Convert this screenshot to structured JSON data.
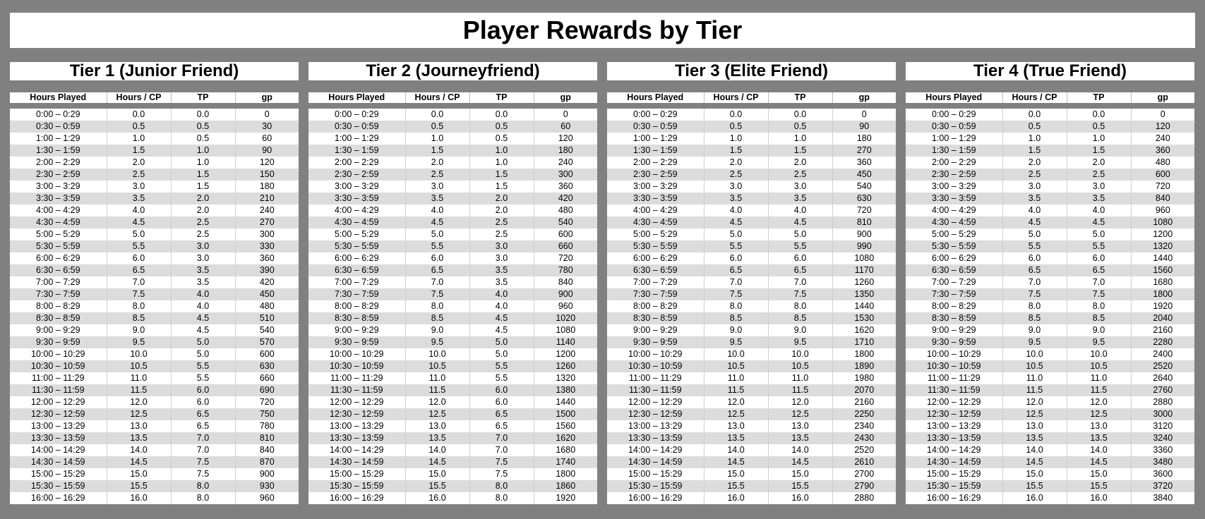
{
  "page_title": "Player Rewards by Tier",
  "columns": [
    "Hours Played",
    "Hours / CP",
    "TP",
    "gp"
  ],
  "hours": [
    "0:00 – 0:29",
    "0:30 – 0:59",
    "1:00 – 1:29",
    "1:30 – 1:59",
    "2:00 – 2:29",
    "2:30 – 2:59",
    "3:00 – 3:29",
    "3:30 – 3:59",
    "4:00 – 4:29",
    "4:30 – 4:59",
    "5:00 – 5:29",
    "5:30 – 5:59",
    "6:00 – 6:29",
    "6:30 – 6:59",
    "7:00 – 7:29",
    "7:30 – 7:59",
    "8:00 – 8:29",
    "8:30 – 8:59",
    "9:00 – 9:29",
    "9:30 – 9:59",
    "10:00 – 10:29",
    "10:30 – 10:59",
    "11:00 – 11:29",
    "11:30 – 11:59",
    "12:00 – 12:29",
    "12:30 – 12:59",
    "13:00 – 13:29",
    "13:30 – 13:59",
    "14:00 – 14:29",
    "14:30 – 14:59",
    "15:00 – 15:29",
    "15:30 – 15:59",
    "16:00 – 16:29"
  ],
  "cp": [
    "0.0",
    "0.5",
    "1.0",
    "1.5",
    "2.0",
    "2.5",
    "3.0",
    "3.5",
    "4.0",
    "4.5",
    "5.0",
    "5.5",
    "6.0",
    "6.5",
    "7.0",
    "7.5",
    "8.0",
    "8.5",
    "9.0",
    "9.5",
    "10.0",
    "10.5",
    "11.0",
    "11.5",
    "12.0",
    "12.5",
    "13.0",
    "13.5",
    "14.0",
    "14.5",
    "15.0",
    "15.5",
    "16.0"
  ],
  "tiers": [
    {
      "title": "Tier 1 (Junior Friend)",
      "tp": [
        "0.0",
        "0.5",
        "0.5",
        "1.0",
        "1.0",
        "1.5",
        "1.5",
        "2.0",
        "2.0",
        "2.5",
        "2.5",
        "3.0",
        "3.0",
        "3.5",
        "3.5",
        "4.0",
        "4.0",
        "4.5",
        "4.5",
        "5.0",
        "5.0",
        "5.5",
        "5.5",
        "6.0",
        "6.0",
        "6.5",
        "6.5",
        "7.0",
        "7.0",
        "7.5",
        "7.5",
        "8.0",
        "8.0"
      ],
      "gp": [
        "0",
        "30",
        "60",
        "90",
        "120",
        "150",
        "180",
        "210",
        "240",
        "270",
        "300",
        "330",
        "360",
        "390",
        "420",
        "450",
        "480",
        "510",
        "540",
        "570",
        "600",
        "630",
        "660",
        "690",
        "720",
        "750",
        "780",
        "810",
        "840",
        "870",
        "900",
        "930",
        "960"
      ]
    },
    {
      "title": "Tier 2 (Journeyfriend)",
      "tp": [
        "0.0",
        "0.5",
        "0.5",
        "1.0",
        "1.0",
        "1.5",
        "1.5",
        "2.0",
        "2.0",
        "2.5",
        "2.5",
        "3.0",
        "3.0",
        "3.5",
        "3.5",
        "4.0",
        "4.0",
        "4.5",
        "4.5",
        "5.0",
        "5.0",
        "5.5",
        "5.5",
        "6.0",
        "6.0",
        "6.5",
        "6.5",
        "7.0",
        "7.0",
        "7.5",
        "7.5",
        "8.0",
        "8.0"
      ],
      "gp": [
        "0",
        "60",
        "120",
        "180",
        "240",
        "300",
        "360",
        "420",
        "480",
        "540",
        "600",
        "660",
        "720",
        "780",
        "840",
        "900",
        "960",
        "1020",
        "1080",
        "1140",
        "1200",
        "1260",
        "1320",
        "1380",
        "1440",
        "1500",
        "1560",
        "1620",
        "1680",
        "1740",
        "1800",
        "1860",
        "1920"
      ]
    },
    {
      "title": "Tier 3 (Elite Friend)",
      "tp": [
        "0.0",
        "0.5",
        "1.0",
        "1.5",
        "2.0",
        "2.5",
        "3.0",
        "3.5",
        "4.0",
        "4.5",
        "5.0",
        "5.5",
        "6.0",
        "6.5",
        "7.0",
        "7.5",
        "8.0",
        "8.5",
        "9.0",
        "9.5",
        "10.0",
        "10.5",
        "11.0",
        "11.5",
        "12.0",
        "12.5",
        "13.0",
        "13.5",
        "14.0",
        "14.5",
        "15.0",
        "15.5",
        "16.0"
      ],
      "gp": [
        "0",
        "90",
        "180",
        "270",
        "360",
        "450",
        "540",
        "630",
        "720",
        "810",
        "900",
        "990",
        "1080",
        "1170",
        "1260",
        "1350",
        "1440",
        "1530",
        "1620",
        "1710",
        "1800",
        "1890",
        "1980",
        "2070",
        "2160",
        "2250",
        "2340",
        "2430",
        "2520",
        "2610",
        "2700",
        "2790",
        "2880"
      ]
    },
    {
      "title": "Tier 4 (True Friend)",
      "tp": [
        "0.0",
        "0.5",
        "1.0",
        "1.5",
        "2.0",
        "2.5",
        "3.0",
        "3.5",
        "4.0",
        "4.5",
        "5.0",
        "5.5",
        "6.0",
        "6.5",
        "7.0",
        "7.5",
        "8.0",
        "8.5",
        "9.0",
        "9.5",
        "10.0",
        "10.5",
        "11.0",
        "11.5",
        "12.0",
        "12.5",
        "13.0",
        "13.5",
        "14.0",
        "14.5",
        "15.0",
        "15.5",
        "16.0"
      ],
      "gp": [
        "0",
        "120",
        "240",
        "360",
        "480",
        "600",
        "720",
        "840",
        "960",
        "1080",
        "1200",
        "1320",
        "1440",
        "1560",
        "1680",
        "1800",
        "1920",
        "2040",
        "2160",
        "2280",
        "2400",
        "2520",
        "2640",
        "2760",
        "2880",
        "3000",
        "3120",
        "3240",
        "3360",
        "3480",
        "3600",
        "3720",
        "3840"
      ]
    }
  ]
}
